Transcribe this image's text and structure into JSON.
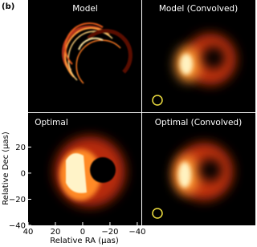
{
  "figure_label": "(b)",
  "panels": [
    {
      "title": "Model"
    },
    {
      "title": "Model (Convolved)"
    },
    {
      "title": "Optimal"
    },
    {
      "title": "Optimal (Convolved)"
    }
  ],
  "axes": {
    "xlabel": "Relative RA (μas)",
    "ylabel": "Relative Dec (μas)",
    "xlim": [
      40,
      -43
    ],
    "ylim": [
      -40,
      46
    ],
    "xticks": [
      40,
      20,
      0,
      {
        "value": -20,
        "label": "−20"
      },
      {
        "value": -40,
        "label": "−40"
      }
    ],
    "yticks": [
      20,
      0,
      {
        "value": -20,
        "label": "−20"
      },
      {
        "value": -40,
        "label": "−40"
      }
    ]
  }
}
